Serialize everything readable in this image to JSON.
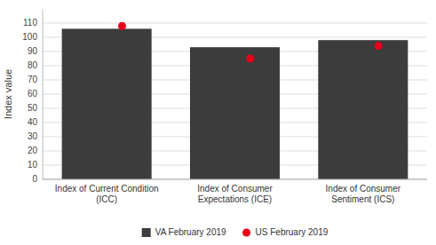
{
  "chart_data": {
    "type": "bar",
    "categories": [
      "Index of Current Condition\n(ICC)",
      "Index of Consumer\nExpectations (ICE)",
      "Index of Consumer\nSentiment (ICS)"
    ],
    "series": [
      {
        "name": "VA February 2019",
        "type": "bar",
        "color": "#3c3c3c",
        "values": [
          106,
          93,
          98
        ]
      },
      {
        "name": "US February 2019",
        "type": "scatter",
        "marker": "circle",
        "color": "#e8001c",
        "values": [
          108,
          85,
          94
        ]
      }
    ],
    "y_label": "Index value",
    "ylim": [
      0,
      120
    ],
    "yticks": [
      0,
      10,
      20,
      30,
      40,
      50,
      60,
      70,
      80,
      90,
      100,
      110
    ],
    "grid": true,
    "legend": "bottom"
  }
}
